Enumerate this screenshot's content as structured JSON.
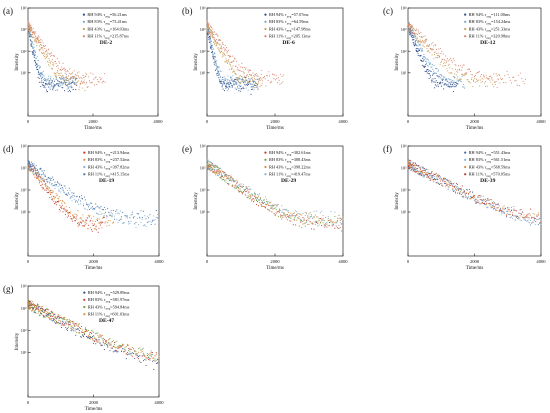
{
  "chart_data": [
    {
      "type": "scatter",
      "letter": "(a)",
      "title": "DE-2",
      "xlabel": "Time/ms",
      "ylabel": "Intensity",
      "xlim": [
        0,
        4000
      ],
      "xticks": [
        "0",
        "2000",
        "4000"
      ],
      "yscale": "log",
      "ylim": [
        0.1,
        10000
      ],
      "yticks": [
        {
          "value": 10,
          "label": "10¹"
        },
        {
          "value": 100,
          "label": "10²"
        },
        {
          "value": 1000,
          "label": "10³"
        },
        {
          "value": 10000,
          "label": "10⁴"
        }
      ],
      "legend_position": "top-right",
      "series": [
        {
          "name": "RH 94% τavg=56.21ms",
          "prefix": "RH 94% τ",
          "sub": "avg",
          "suffix": "=56.21ms",
          "tau": 56.21,
          "color": "#2e4a8c"
        },
        {
          "name": "RH 83% τavg=73.41ms",
          "prefix": "RH 83% τ",
          "sub": "avg",
          "suffix": "=73.41ms",
          "tau": 73.41,
          "color": "#6fa3c8"
        },
        {
          "name": "RH 43% τavg=164.03ms",
          "prefix": "RH 43% τ",
          "sub": "avg",
          "suffix": "=164.03ms",
          "tau": 164.03,
          "color": "#c9a05a"
        },
        {
          "name": "RH 11% τavg=215.87ms",
          "prefix": "RH 11% τ",
          "sub": "avg",
          "suffix": "=215.87ms",
          "tau": 215.87,
          "color": "#d9826b"
        }
      ]
    },
    {
      "type": "scatter",
      "letter": "(b)",
      "title": "DE-6",
      "xlabel": "Time/ms",
      "ylabel": "Intensity",
      "xlim": [
        0,
        4000
      ],
      "xticks": [
        "0",
        "2000",
        "4000"
      ],
      "yscale": "log",
      "ylim": [
        0.1,
        10000
      ],
      "yticks": [
        {
          "value": 10,
          "label": "10¹"
        },
        {
          "value": 100,
          "label": "10²"
        },
        {
          "value": 1000,
          "label": "10³"
        },
        {
          "value": 10000,
          "label": "10⁴"
        }
      ],
      "legend_position": "top-right",
      "series": [
        {
          "name": "RH 94% τavg=57.07ms",
          "prefix": "RH 94% τ",
          "sub": "avg",
          "suffix": "=57.07ms",
          "tau": 57.07,
          "color": "#2e4a8c"
        },
        {
          "name": "RH 83% τavg=64.59ms",
          "prefix": "RH 83% τ",
          "sub": "avg",
          "suffix": "=64.59ms",
          "tau": 64.59,
          "color": "#6fa3c8"
        },
        {
          "name": "RH 43% τavg=147.98ms",
          "prefix": "RH 43% τ",
          "sub": "avg",
          "suffix": "=147.98ms",
          "tau": 147.98,
          "color": "#c9a05a"
        },
        {
          "name": "RH 11% τavg=205.13ms",
          "prefix": "RH 11% τ",
          "sub": "avg",
          "suffix": "=205.13ms",
          "tau": 205.13,
          "color": "#d9826b"
        }
      ]
    },
    {
      "type": "scatter",
      "letter": "(c)",
      "title": "DE-12",
      "xlabel": "Time/ms",
      "ylabel": "Intensity",
      "xlim": [
        0,
        4000
      ],
      "xticks": [
        "0",
        "2000",
        "4000"
      ],
      "yscale": "log",
      "ylim": [
        0.1,
        10000
      ],
      "yticks": [
        {
          "value": 10,
          "label": "10¹"
        },
        {
          "value": 100,
          "label": "10²"
        },
        {
          "value": 1000,
          "label": "10³"
        },
        {
          "value": 10000,
          "label": "10⁴"
        }
      ],
      "legend_position": "top-right",
      "series": [
        {
          "name": "RH 94% τavg=111.00ms",
          "prefix": "RH 94% τ",
          "sub": "avg",
          "suffix": "=111.00ms",
          "tau": 111.0,
          "color": "#2e4a8c"
        },
        {
          "name": "RH 83% τavg=154.24ms",
          "prefix": "RH 83% τ",
          "sub": "avg",
          "suffix": "=154.24ms",
          "tau": 154.24,
          "color": "#6fa3c8"
        },
        {
          "name": "RH 43% τavg=251.33ms",
          "prefix": "RH 43% τ",
          "sub": "avg",
          "suffix": "=251.33ms",
          "tau": 251.33,
          "color": "#c9a05a"
        },
        {
          "name": "RH 11% τavg=320.98ms",
          "prefix": "RH 11% τ",
          "sub": "avg",
          "suffix": "=320.98ms",
          "tau": 320.98,
          "color": "#d9826b"
        }
      ]
    },
    {
      "type": "scatter",
      "letter": "(d)",
      "title": "DE-19",
      "xlabel": "Time/ms",
      "ylabel": "Intensity",
      "xlim": [
        0,
        4000
      ],
      "xticks": [
        "0",
        "2000",
        "4000"
      ],
      "yscale": "log",
      "ylim": [
        0.1,
        10000
      ],
      "yticks": [
        {
          "value": 10,
          "label": "10¹"
        },
        {
          "value": 100,
          "label": "10²"
        },
        {
          "value": 1000,
          "label": "10³"
        },
        {
          "value": 10000,
          "label": "10⁴"
        }
      ],
      "legend_position": "top-right",
      "series": [
        {
          "name": "RH 94% τavg=213.94ms",
          "prefix": "RH 94% τ",
          "sub": "avg",
          "suffix": "=213.94ms",
          "tau": 213.94,
          "color": "#c23b2e"
        },
        {
          "name": "RH 83% τavg=237.52ms",
          "prefix": "RH 83% τ",
          "sub": "avg",
          "suffix": "=237.52ms",
          "tau": 237.52,
          "color": "#d98c3a"
        },
        {
          "name": "RH 43% τavg=397.82ms",
          "prefix": "RH 43% τ",
          "sub": "avg",
          "suffix": "=397.82ms",
          "tau": 397.82,
          "color": "#7fb0d6"
        },
        {
          "name": "RH 11% τavg=415.15ms",
          "prefix": "RH 11% τ",
          "sub": "avg",
          "suffix": "=415.15ms",
          "tau": 415.15,
          "color": "#4a6fa8"
        }
      ]
    },
    {
      "type": "scatter",
      "letter": "(e)",
      "title": "DE-29",
      "xlabel": "Time/ms",
      "ylabel": "Intensity",
      "xlim": [
        0,
        4000
      ],
      "xticks": [
        "0",
        "2000",
        "4000"
      ],
      "yscale": "log",
      "ylim": [
        0.1,
        10000
      ],
      "yticks": [
        {
          "value": 10,
          "label": "10¹"
        },
        {
          "value": 100,
          "label": "10²"
        },
        {
          "value": 1000,
          "label": "10³"
        },
        {
          "value": 10000,
          "label": "10⁴"
        }
      ],
      "legend_position": "top-right",
      "series": [
        {
          "name": "RH 94% τavg=382.61ms",
          "prefix": "RH 94% τ",
          "sub": "avg",
          "suffix": "=382.61ms",
          "tau": 382.61,
          "color": "#c23b2e"
        },
        {
          "name": "RH 83% τavg=388.43ms",
          "prefix": "RH 83% τ",
          "sub": "avg",
          "suffix": "=388.43ms",
          "tau": 388.43,
          "color": "#6a9f3e"
        },
        {
          "name": "RH 43% τavg=398.22ms",
          "prefix": "RH 43% τ",
          "sub": "avg",
          "suffix": "=398.22ms",
          "tau": 398.22,
          "color": "#d98c3a"
        },
        {
          "name": "RH 11% τavg=419.47ms",
          "prefix": "RH 11% τ",
          "sub": "avg",
          "suffix": "=419.47ms",
          "tau": 419.47,
          "color": "#7fb0d6"
        }
      ]
    },
    {
      "type": "scatter",
      "letter": "(f)",
      "title": "DE-39",
      "xlabel": "Time/ms",
      "ylabel": "Intensity",
      "xlim": [
        0,
        4000
      ],
      "xticks": [
        "0",
        "2000",
        "4000"
      ],
      "yscale": "log",
      "ylim": [
        0.1,
        10000
      ],
      "yticks": [
        {
          "value": 10,
          "label": "10¹"
        },
        {
          "value": 100,
          "label": "10²"
        },
        {
          "value": 1000,
          "label": "10³"
        },
        {
          "value": 10000,
          "label": "10⁴"
        }
      ],
      "legend_position": "top-right",
      "series": [
        {
          "name": "RH 94% τavg=551.43ms",
          "prefix": "RH 94% τ",
          "sub": "avg",
          "suffix": "=551.43ms",
          "tau": 551.43,
          "color": "#4a6fa8"
        },
        {
          "name": "RH 83% τavg=561.51ms",
          "prefix": "RH 83% τ",
          "sub": "avg",
          "suffix": "=561.51ms",
          "tau": 561.51,
          "color": "#7fb0d6"
        },
        {
          "name": "RH 43% τavg=568.59ms",
          "prefix": "RH 43% τ",
          "sub": "avg",
          "suffix": "=568.59ms",
          "tau": 568.59,
          "color": "#d98c3a"
        },
        {
          "name": "RH 11% τavg=570.05ms",
          "prefix": "RH 11% τ",
          "sub": "avg",
          "suffix": "=570.05ms",
          "tau": 570.05,
          "color": "#c23b2e"
        }
      ]
    },
    {
      "type": "scatter",
      "letter": "(g)",
      "title": "DE-47",
      "xlabel": "Time/ms",
      "ylabel": "Intensity",
      "xlim": [
        0,
        4000
      ],
      "xticks": [
        "0",
        "2000",
        "4000"
      ],
      "yscale": "log",
      "ylim": [
        0.1,
        10000
      ],
      "yticks": [
        {
          "value": 10,
          "label": "10¹"
        },
        {
          "value": 100,
          "label": "10²"
        },
        {
          "value": 1000,
          "label": "10³"
        },
        {
          "value": 10000,
          "label": "10⁴"
        }
      ],
      "legend_position": "top-right",
      "series": [
        {
          "name": "RH 94% τavg=529.89ms",
          "prefix": "RH 94% τ",
          "sub": "avg",
          "suffix": "=529.89ms",
          "tau": 529.89,
          "color": "#2e4a8c"
        },
        {
          "name": "RH 83% τavg=581.97ms",
          "prefix": "RH 83% τ",
          "sub": "avg",
          "suffix": "=581.97ms",
          "tau": 581.97,
          "color": "#c23b2e"
        },
        {
          "name": "RH 43% τavg=594.84ms",
          "prefix": "RH 43% τ",
          "sub": "avg",
          "suffix": "=594.84ms",
          "tau": 594.84,
          "color": "#6a9f3e"
        },
        {
          "name": "RH 11% τavg=601.03ms",
          "prefix": "RH 11% τ",
          "sub": "avg",
          "suffix": "=601.03ms",
          "tau": 601.03,
          "color": "#d98c3a"
        }
      ]
    }
  ]
}
